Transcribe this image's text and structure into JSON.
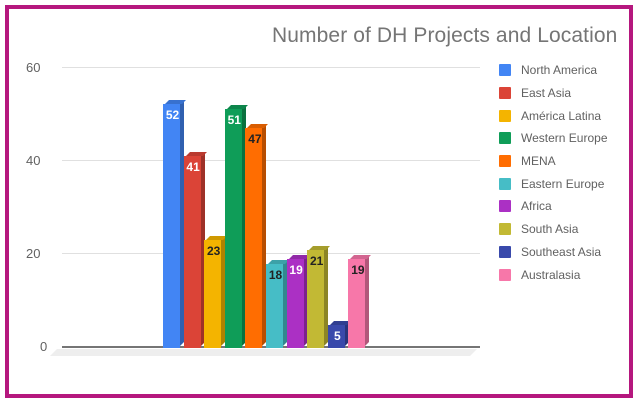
{
  "chart_data": {
    "type": "bar",
    "title": "Number of DH Projects and Location",
    "xlabel": "",
    "ylabel": "",
    "ylim": [
      0,
      60
    ],
    "yticks": [
      0,
      20,
      40,
      60
    ],
    "grid": true,
    "legend_position": "right",
    "style": "3d",
    "categories": [
      "North America",
      "East Asia",
      "América Latina",
      "Western Europe",
      "MENA",
      "Eastern Europe",
      "Africa",
      "South Asia",
      "Southeast Asia",
      "Australasia"
    ],
    "values": [
      52,
      41,
      23,
      51,
      47,
      18,
      19,
      21,
      5,
      19
    ],
    "colors": [
      "#4285f4",
      "#db4437",
      "#f4b400",
      "#0f9d58",
      "#ff6d01",
      "#46bdc6",
      "#ab30c4",
      "#c2b934",
      "#3949ab",
      "#f777a9"
    ],
    "label_colors": [
      "#ffffff",
      "#ffffff",
      "#222222",
      "#ffffff",
      "#222222",
      "#222222",
      "#ffffff",
      "#222222",
      "#ffffff",
      "#222222"
    ]
  },
  "frame": {
    "border_color": "#b5177e"
  },
  "ytick_labels": [
    "60",
    "40",
    "20",
    "0"
  ],
  "legend": [
    {
      "label": "North America",
      "color": "#4285f4"
    },
    {
      "label": "East Asia",
      "color": "#db4437"
    },
    {
      "label": "América Latina",
      "color": "#f4b400"
    },
    {
      "label": "Western Europe",
      "color": "#0f9d58"
    },
    {
      "label": "MENA",
      "color": "#ff6d01"
    },
    {
      "label": "Eastern Europe",
      "color": "#46bdc6"
    },
    {
      "label": "Africa",
      "color": "#ab30c4"
    },
    {
      "label": "South Asia",
      "color": "#c2b934"
    },
    {
      "label": "Southeast Asia",
      "color": "#3949ab"
    },
    {
      "label": "Australasia",
      "color": "#f777a9"
    }
  ]
}
